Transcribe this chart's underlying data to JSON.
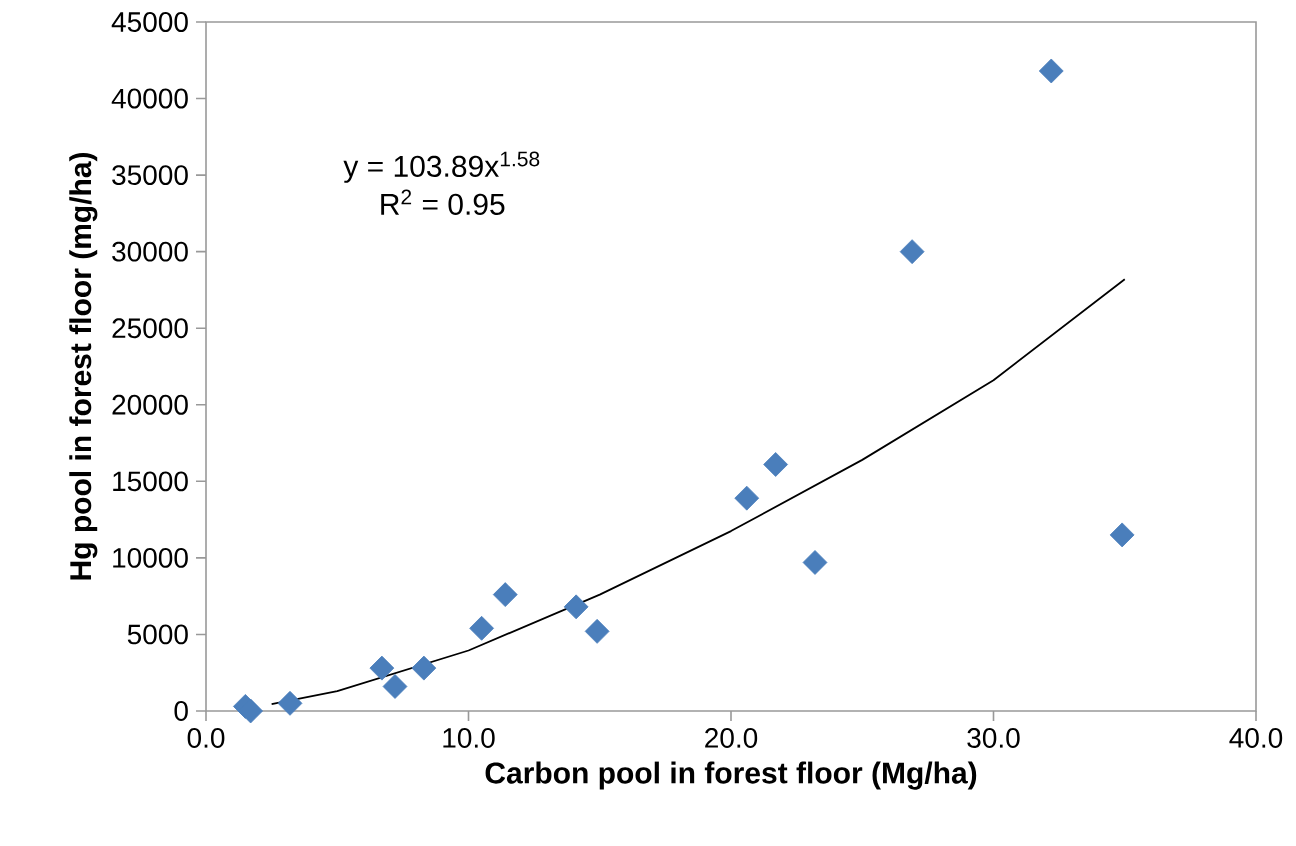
{
  "chart_data": {
    "type": "scatter",
    "xlabel": "Carbon pool in forest floor (Mg/ha)",
    "ylabel": "Hg pool in forest floor (mg/ha)",
    "xlim": [
      0,
      40
    ],
    "ylim": [
      0,
      45000
    ],
    "xticks": [
      {
        "value": 0,
        "label": "0.0"
      },
      {
        "value": 10,
        "label": "10.0"
      },
      {
        "value": 20,
        "label": "20.0"
      },
      {
        "value": 30,
        "label": "30.0"
      },
      {
        "value": 40,
        "label": "40.0"
      }
    ],
    "yticks": [
      0,
      5000,
      10000,
      15000,
      20000,
      25000,
      30000,
      35000,
      40000,
      45000
    ],
    "annotations": [
      "y = 103.89x$^{1.58}$",
      "R$^{2}$ = 0.95"
    ],
    "series": [
      {
        "color": "#4a7ebb",
        "marker": "diamond",
        "x": [
          1.5,
          1.7,
          3.2,
          6.7,
          7.2,
          8.3,
          10.5,
          11.4,
          14.1,
          14.9,
          20.6,
          21.7,
          23.2,
          26.9,
          32.2,
          34.9
        ],
        "values": [
          300,
          0,
          500,
          2800,
          1600,
          2800,
          5400,
          7600,
          6800,
          5200,
          13900,
          16100,
          9700,
          30000,
          41800,
          11500
        ]
      },
      {
        "type": "line",
        "color": "#000000",
        "marker": "none",
        "x": [
          2.5,
          5,
          10,
          15,
          20,
          25,
          30,
          35
        ],
        "values": [
          450,
          1300,
          3950,
          7600,
          11750,
          16400,
          21600,
          28200
        ]
      }
    ]
  }
}
